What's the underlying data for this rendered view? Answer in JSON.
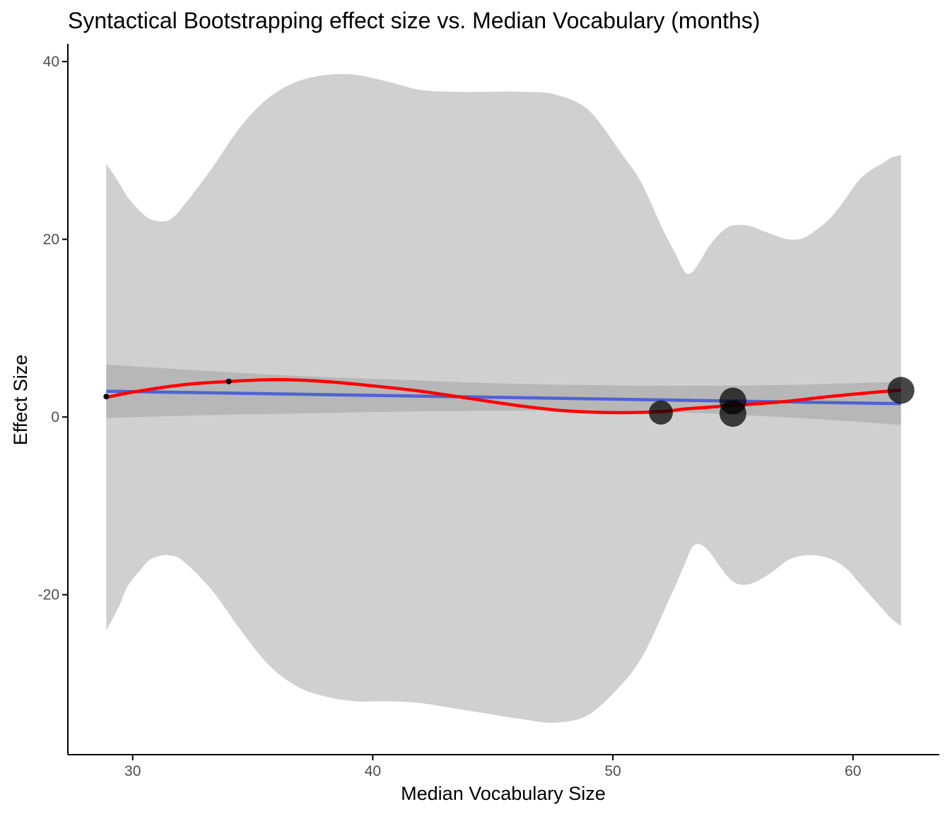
{
  "chart_data": {
    "type": "scatter",
    "title": "Syntactical Bootstrapping effect size vs. Median Vocabulary (months)",
    "xlabel": "Median Vocabulary Size",
    "ylabel": "Effect Size",
    "xlim": [
      27.3,
      63.6
    ],
    "ylim": [
      -38.0,
      42.0
    ],
    "x_ticks": [
      30,
      40,
      50,
      60
    ],
    "y_ticks": [
      -20,
      0,
      20,
      40
    ],
    "grid": false,
    "points": [
      {
        "x": 28.9,
        "y": 2.3,
        "r": 4
      },
      {
        "x": 34.0,
        "y": 4.0,
        "r": 4
      },
      {
        "x": 52.0,
        "y": 0.5,
        "r": 17
      },
      {
        "x": 55.0,
        "y": 1.8,
        "r": 19
      },
      {
        "x": 55.0,
        "y": 0.4,
        "r": 19
      },
      {
        "x": 62.0,
        "y": 3.0,
        "r": 19
      }
    ],
    "loess_band": {
      "x": [
        28.9,
        29.4,
        29.8,
        30.3,
        30.7,
        31.2,
        31.6,
        32.1,
        33.3,
        34.5,
        35.7,
        36.9,
        38.1,
        39.3,
        40.7,
        42.0,
        43.4,
        44.8,
        46.2,
        47.6,
        49.0,
        50.4,
        51.1,
        51.6,
        52.1,
        52.6,
        53.0,
        53.3,
        53.6,
        54.0,
        54.4,
        54.8,
        55.2,
        55.7,
        56.2,
        56.7,
        57.3,
        57.9,
        58.5,
        59.1,
        59.7,
        60.2,
        60.7,
        61.2,
        61.6,
        62.0
      ],
      "upper": [
        28.5,
        26.5,
        24.7,
        23.2,
        22.3,
        22.0,
        22.3,
        23.7,
        28.0,
        32.7,
        36.0,
        37.8,
        38.5,
        38.5,
        37.7,
        36.8,
        36.6,
        36.6,
        36.6,
        36.3,
        34.5,
        29.5,
        26.8,
        24.0,
        21.0,
        18.4,
        16.3,
        16.3,
        17.4,
        19.2,
        20.5,
        21.4,
        21.6,
        21.5,
        21.0,
        20.5,
        20.0,
        20.1,
        21.1,
        22.5,
        24.6,
        26.5,
        27.7,
        28.5,
        29.2,
        29.5
      ],
      "lower": [
        -24.0,
        -21.5,
        -19.0,
        -17.3,
        -16.1,
        -15.6,
        -15.6,
        -16.2,
        -19.5,
        -24.0,
        -28.0,
        -30.4,
        -31.5,
        -32.0,
        -32.0,
        -32.2,
        -32.8,
        -33.4,
        -34.0,
        -34.4,
        -33.5,
        -30.0,
        -27.5,
        -25.0,
        -22.0,
        -19.0,
        -16.5,
        -14.7,
        -14.3,
        -15.1,
        -16.6,
        -18.0,
        -18.8,
        -18.8,
        -18.2,
        -17.3,
        -16.1,
        -15.6,
        -15.6,
        -16.0,
        -17.0,
        -18.5,
        -20.0,
        -21.5,
        -22.7,
        -23.5
      ]
    },
    "lm_band": {
      "x": [
        28.9,
        33.0,
        37.0,
        41.0,
        45.0,
        49.0,
        53.0,
        57.0,
        60.0,
        62.0
      ],
      "upper": [
        5.9,
        5.2,
        4.6,
        4.2,
        3.8,
        3.6,
        3.5,
        3.6,
        3.8,
        4.0
      ],
      "lower": [
        -0.1,
        0.2,
        0.4,
        0.6,
        0.7,
        0.7,
        0.5,
        0.0,
        -0.5,
        -0.9
      ]
    },
    "lm_fit": {
      "x": [
        28.9,
        62.0
      ],
      "y": [
        2.9,
        1.5
      ]
    },
    "loess_fit": {
      "x": [
        28.9,
        30.0,
        32.0,
        34.0,
        36.0,
        38.0,
        40.0,
        42.0,
        44.0,
        46.0,
        48.0,
        50.0,
        52.0,
        53.0,
        55.0,
        57.0,
        59.0,
        61.0,
        62.0
      ],
      "y": [
        2.2,
        2.8,
        3.6,
        4.0,
        4.2,
        4.0,
        3.5,
        2.9,
        2.1,
        1.3,
        0.7,
        0.5,
        0.6,
        0.9,
        1.3,
        1.7,
        2.3,
        2.8,
        3.0
      ]
    },
    "colors": {
      "loess_band": "#d0d0d0",
      "lm_band": "#b3b3b3",
      "lm_line": "#4f63d3",
      "loess_line": "#ff0000",
      "points": "#000000",
      "axis": "#000000",
      "tick_label": "#4d4d4d"
    }
  }
}
